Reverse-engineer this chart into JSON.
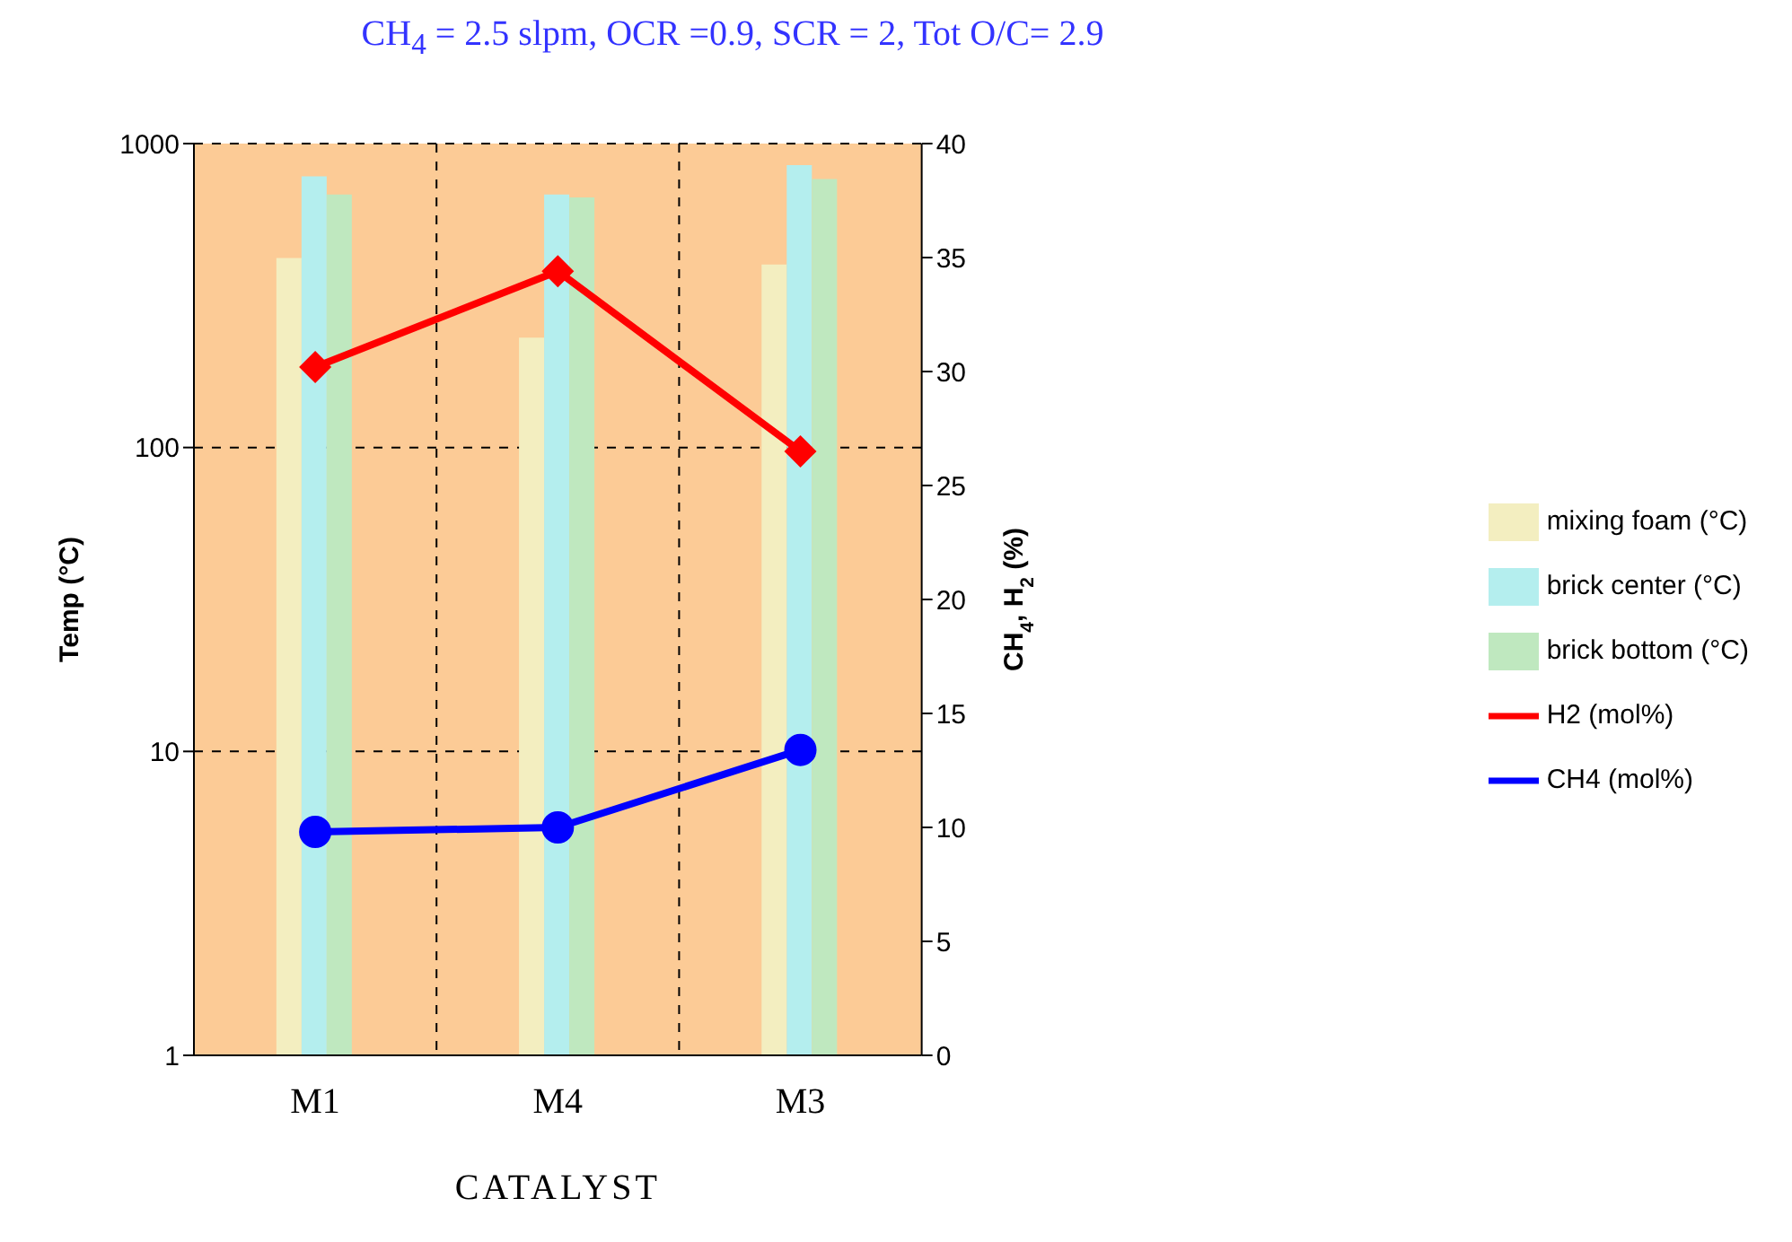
{
  "chart_data": {
    "type": "bar",
    "title": "CH$_{4}$ = 2.5 slpm, OCR =0.9, SCR = 2, Tot O/C= 2.9",
    "xlabel": "CATALYST",
    "ylabel": "Temp (°C)",
    "y2label": "CH$_{4}$, H$_{2}$ (%)",
    "categories": [
      "M1",
      "M4",
      "M3"
    ],
    "series": [
      {
        "name": "mixing foam (°C)",
        "color": "#f3eec0",
        "values": [
          420,
          230,
          400
        ]
      },
      {
        "name": "brick center (°C)",
        "color": "#b4eeee",
        "values": [
          780,
          680,
          850
        ]
      },
      {
        "name": "brick  bottom (°C)",
        "color": "#bfe8bf",
        "values": [
          680,
          665,
          765
        ]
      },
      {
        "name": "H2 (mol%)",
        "type": "line",
        "axis": "y2",
        "color": "#ff0000",
        "marker": "diamond",
        "values": [
          30.2,
          34.4,
          26.5
        ]
      },
      {
        "name": "CH4 (mol%)",
        "type": "line",
        "axis": "y2",
        "color": "#0000ff",
        "marker": "circle",
        "values": [
          9.8,
          10.0,
          13.4
        ]
      }
    ],
    "log": "y",
    "ylim": [
      1,
      1000
    ],
    "yticks": [
      1,
      10,
      100,
      1000
    ],
    "y2lim": [
      0,
      40
    ],
    "y2ticks": [
      0,
      5,
      10,
      15,
      20,
      25,
      30,
      35,
      40
    ],
    "grid": true,
    "legend": "right"
  }
}
